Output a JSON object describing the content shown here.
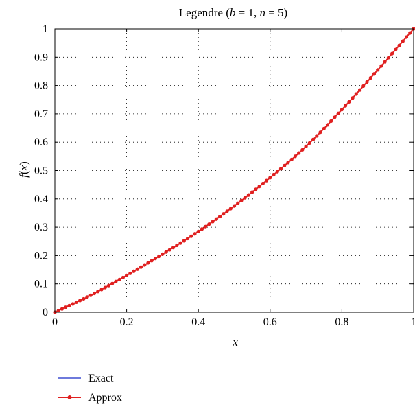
{
  "chart_data": {
    "type": "line",
    "title": "Legendre (b = 1, n = 5)",
    "title_parts": {
      "prefix": "Legendre (",
      "b_var": "b",
      "b_val": " = 1, ",
      "n_var": "n",
      "n_val": " = 5)"
    },
    "xlabel": "x",
    "ylabel": "f(x)",
    "ylabel_parts": {
      "func": "f",
      "open": "(",
      "var": "x",
      "close": ")"
    },
    "xlim": [
      0,
      1
    ],
    "ylim": [
      0,
      1
    ],
    "xticks": [
      0,
      0.2,
      0.4,
      0.6,
      0.8,
      1
    ],
    "xtick_labels": [
      "0",
      "0.2",
      "0.4",
      "0.6",
      "0.8",
      "1"
    ],
    "yticks": [
      0,
      0.1,
      0.2,
      0.3,
      0.4,
      0.5,
      0.6,
      0.7,
      0.8,
      0.9,
      1
    ],
    "ytick_labels": [
      "0",
      "0.1",
      "0.2",
      "0.3",
      "0.4",
      "0.5",
      "0.6",
      "0.7",
      "0.8",
      "0.9",
      "1"
    ],
    "grid": true,
    "legend_position": "bottom-left, below plot",
    "series": [
      {
        "name": "Exact",
        "color": "#3f4fd1",
        "marker": "none",
        "x": [
          0,
          0.1,
          0.2,
          0.3,
          0.4,
          0.5,
          0.6,
          0.7,
          0.8,
          0.9,
          1
        ],
        "y": [
          0,
          0.06,
          0.13,
          0.205,
          0.285,
          0.375,
          0.475,
          0.585,
          0.715,
          0.855,
          1
        ]
      },
      {
        "name": "Approx",
        "color": "#e02020",
        "marker": "dot",
        "x": [
          0,
          0.1,
          0.2,
          0.3,
          0.4,
          0.5,
          0.6,
          0.7,
          0.8,
          0.9,
          1
        ],
        "y": [
          0,
          0.06,
          0.13,
          0.205,
          0.285,
          0.375,
          0.475,
          0.585,
          0.715,
          0.855,
          1
        ]
      }
    ]
  }
}
